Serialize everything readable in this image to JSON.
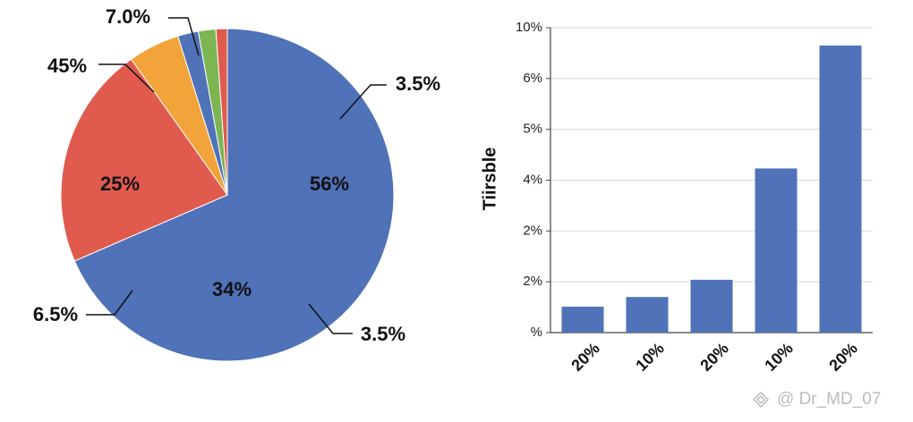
{
  "chart_data": [
    {
      "type": "pie",
      "values": [
        68.5,
        21.7,
        5.0,
        2.0,
        1.7,
        1.1
      ],
      "colors": [
        "#4f72b8",
        "#e05a4e",
        "#f2a33a",
        "#4f72b8",
        "#7cb552",
        "#e05a4e"
      ],
      "annotations": [
        {
          "text": "7.0%"
        },
        {
          "text": "45%"
        },
        {
          "text": "3.5%"
        },
        {
          "text": "56%"
        },
        {
          "text": "25%"
        },
        {
          "text": "34%"
        },
        {
          "text": "6.5%"
        },
        {
          "text": "3.5%"
        }
      ]
    },
    {
      "type": "bar",
      "ylabel": "Tiirsble",
      "categories": [
        "20%",
        "10%",
        "20%",
        "10%",
        "20%"
      ],
      "values": [
        0.51,
        0.7,
        1.04,
        3.23,
        5.65
      ],
      "color": "#4f72b8",
      "ylim": [
        0,
        6
      ],
      "yticks": [
        {
          "value": 0,
          "label": "%"
        },
        {
          "value": 1,
          "label": "2%"
        },
        {
          "value": 2,
          "label": "2%"
        },
        {
          "value": 3,
          "label": "4%"
        },
        {
          "value": 4,
          "label": "5%"
        },
        {
          "value": 5,
          "label": "6%"
        },
        {
          "value": 6,
          "label": "10%"
        }
      ],
      "grid": true
    }
  ],
  "watermark": "@ Dr_MD_07"
}
